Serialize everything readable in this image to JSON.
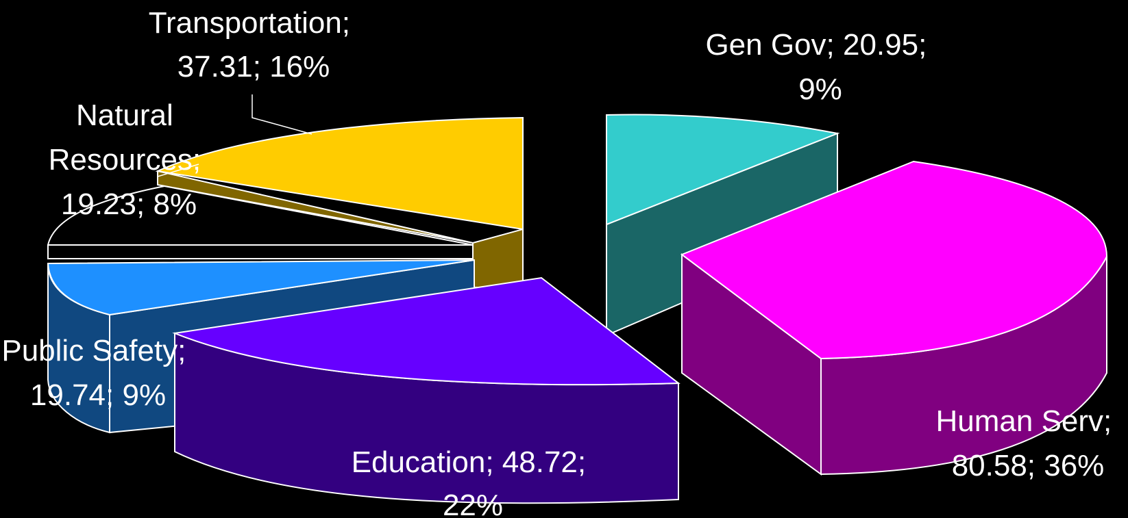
{
  "chart_data": {
    "type": "pie",
    "style": "3d-exploded",
    "title": "",
    "slices": [
      {
        "name": "Gen Gov",
        "value": 20.95,
        "percent": 9,
        "label": [
          "Gen Gov; 20.95;",
          "9%"
        ],
        "color": "#33CCCC",
        "side_color": "#1A6666"
      },
      {
        "name": "Human Serv",
        "value": 80.58,
        "percent": 36,
        "label": [
          "Human Serv;",
          "80.58; 36%"
        ],
        "color": "#FF00FF",
        "side_color": "#800080"
      },
      {
        "name": "Education",
        "value": 48.72,
        "percent": 22,
        "label": [
          "Education; 48.72;",
          "22%"
        ],
        "color": "#6600FF",
        "side_color": "#330080"
      },
      {
        "name": "Public Safety",
        "value": 19.74,
        "percent": 9,
        "label": [
          "Public Safety;",
          "19.74; 9%"
        ],
        "color": "#1E90FF",
        "side_color": "#104880"
      },
      {
        "name": "Natural Resources",
        "value": 19.23,
        "percent": 8,
        "label": [
          "Natural",
          "Resources;",
          "19.23; 8%"
        ],
        "color": "#000000",
        "side_color": "#000000"
      },
      {
        "name": "Transportation",
        "value": 37.31,
        "percent": 16,
        "label": [
          "Transportation;",
          "37.31; 16%"
        ],
        "color": "#FFCC00",
        "side_color": "#806600"
      }
    ]
  }
}
